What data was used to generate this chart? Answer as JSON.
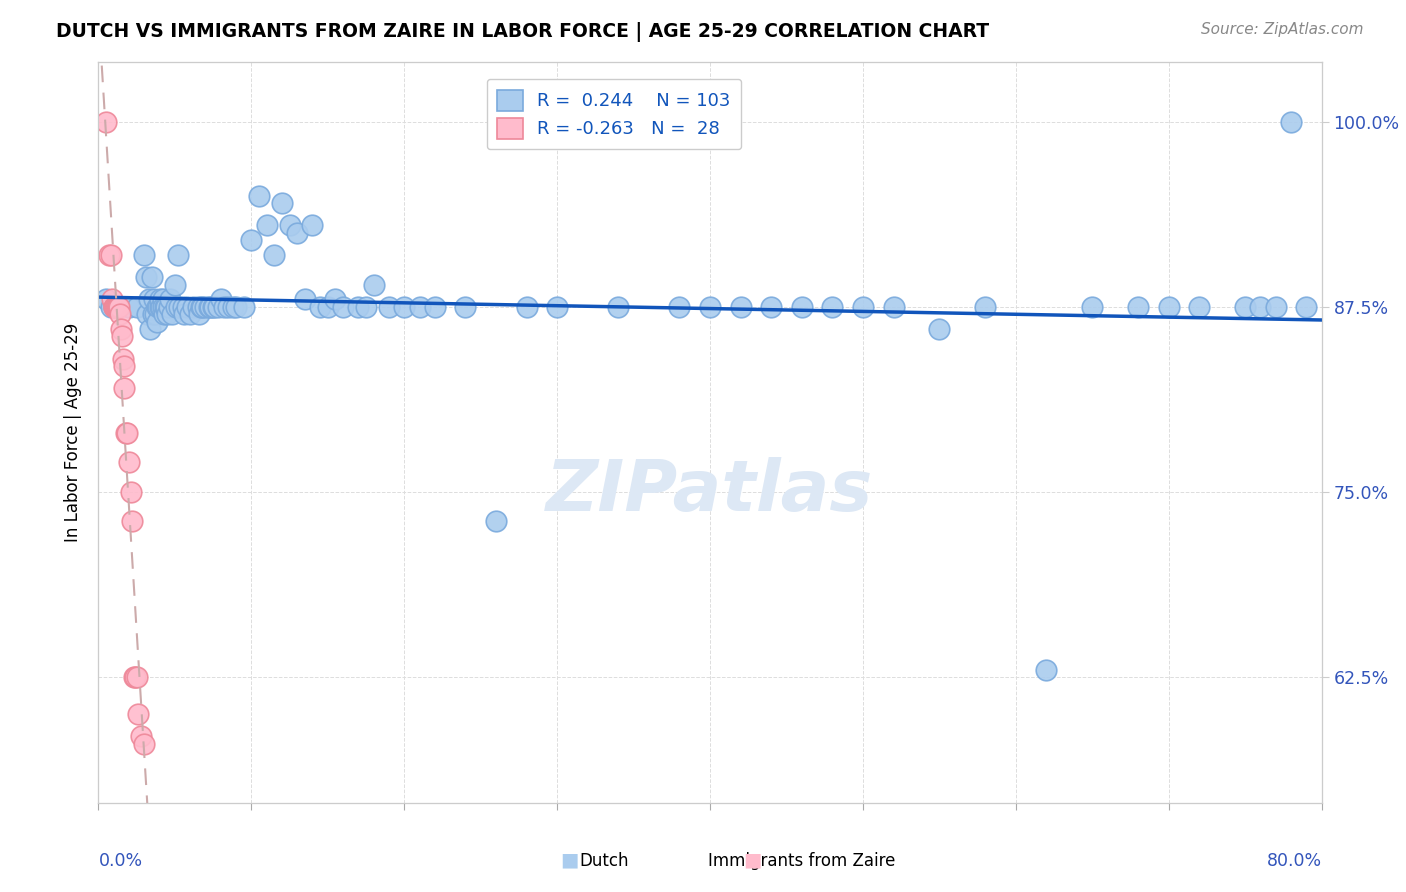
{
  "title": "DUTCH VS IMMIGRANTS FROM ZAIRE IN LABOR FORCE | AGE 25-29 CORRELATION CHART",
  "source": "Source: ZipAtlas.com",
  "ylabel": "In Labor Force | Age 25-29",
  "xlim": [
    0.0,
    0.8
  ],
  "ylim": [
    0.54,
    1.04
  ],
  "yticks": [
    0.625,
    0.75,
    0.875,
    1.0
  ],
  "ytick_labels": [
    "62.5%",
    "75.0%",
    "87.5%",
    "100.0%"
  ],
  "dutch_r": "0.244",
  "dutch_n": "103",
  "zaire_r": "-0.263",
  "zaire_n": "28",
  "dutch_color": "#aaccee",
  "dutch_edge": "#7aaadd",
  "zaire_color": "#ffbbcc",
  "zaire_edge": "#ee8899",
  "trend_dutch_color": "#1155bb",
  "trend_zaire_color": "#ccaaaa",
  "watermark_color": "#dde8f5",
  "dutch_x": [
    0.02,
    0.025,
    0.03,
    0.031,
    0.032,
    0.033,
    0.034,
    0.035,
    0.036,
    0.0365,
    0.037,
    0.038,
    0.0385,
    0.039,
    0.04,
    0.0405,
    0.041,
    0.042,
    0.0425,
    0.043,
    0.0435,
    0.044,
    0.045,
    0.046,
    0.0465,
    0.048,
    0.05,
    0.051,
    0.052,
    0.053,
    0.055,
    0.056,
    0.058,
    0.06,
    0.062,
    0.065,
    0.0655,
    0.067,
    0.068,
    0.07,
    0.072,
    0.073,
    0.075,
    0.0755,
    0.078,
    0.08,
    0.082,
    0.085,
    0.088,
    0.09,
    0.095,
    0.1,
    0.105,
    0.11,
    0.115,
    0.12,
    0.125,
    0.13,
    0.135,
    0.14,
    0.145,
    0.15,
    0.155,
    0.16,
    0.17,
    0.175,
    0.18,
    0.19,
    0.2,
    0.21,
    0.22,
    0.24,
    0.26,
    0.28,
    0.3,
    0.34,
    0.38,
    0.4,
    0.42,
    0.44,
    0.46,
    0.48,
    0.5,
    0.52,
    0.55,
    0.58,
    0.62,
    0.65,
    0.68,
    0.7,
    0.72,
    0.75,
    0.76,
    0.77,
    0.78,
    0.79,
    0.005,
    0.008,
    0.01
  ],
  "dutch_y": [
    0.875,
    0.875,
    0.91,
    0.895,
    0.87,
    0.88,
    0.86,
    0.895,
    0.87,
    0.88,
    0.87,
    0.875,
    0.865,
    0.875,
    0.875,
    0.88,
    0.875,
    0.88,
    0.875,
    0.87,
    0.875,
    0.875,
    0.87,
    0.875,
    0.88,
    0.87,
    0.89,
    0.875,
    0.91,
    0.875,
    0.875,
    0.87,
    0.875,
    0.87,
    0.875,
    0.875,
    0.87,
    0.875,
    0.875,
    0.875,
    0.875,
    0.875,
    0.875,
    0.875,
    0.875,
    0.88,
    0.875,
    0.875,
    0.875,
    0.875,
    0.875,
    0.92,
    0.95,
    0.93,
    0.91,
    0.945,
    0.93,
    0.925,
    0.88,
    0.93,
    0.875,
    0.875,
    0.88,
    0.875,
    0.875,
    0.875,
    0.89,
    0.875,
    0.875,
    0.875,
    0.875,
    0.875,
    0.73,
    0.875,
    0.875,
    0.875,
    0.875,
    0.875,
    0.875,
    0.875,
    0.875,
    0.875,
    0.875,
    0.875,
    0.86,
    0.875,
    0.63,
    0.875,
    0.875,
    0.875,
    0.875,
    0.875,
    0.875,
    0.875,
    1.0,
    0.875,
    0.88,
    0.875,
    0.875
  ],
  "zaire_x": [
    0.005,
    0.007,
    0.008,
    0.009,
    0.01,
    0.0105,
    0.011,
    0.0115,
    0.012,
    0.013,
    0.0135,
    0.014,
    0.015,
    0.0155,
    0.016,
    0.0165,
    0.017,
    0.018,
    0.019,
    0.02,
    0.021,
    0.022,
    0.023,
    0.024,
    0.025,
    0.026,
    0.028,
    0.03
  ],
  "zaire_y": [
    1.0,
    0.91,
    0.91,
    0.88,
    0.875,
    0.875,
    0.875,
    0.875,
    0.875,
    0.875,
    0.875,
    0.87,
    0.86,
    0.855,
    0.84,
    0.835,
    0.82,
    0.79,
    0.79,
    0.77,
    0.75,
    0.73,
    0.625,
    0.625,
    0.625,
    0.6,
    0.585,
    0.58
  ]
}
